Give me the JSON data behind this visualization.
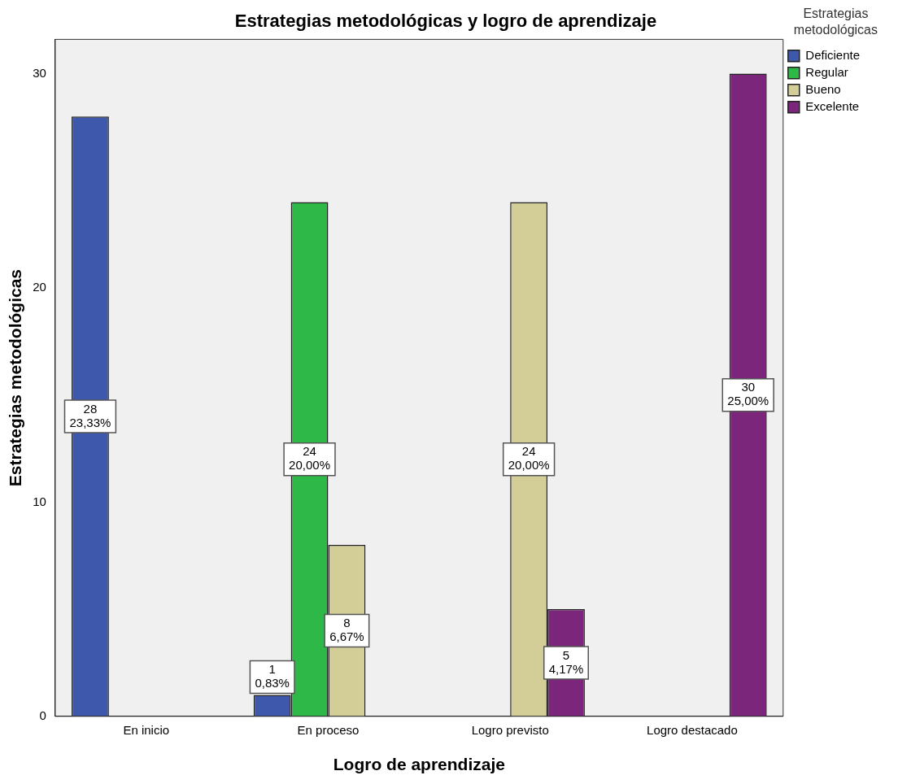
{
  "chart_data": {
    "type": "bar",
    "title": "Estrategias metodológicas y logro de aprendizaje",
    "xlabel": "Logro de aprendizaje",
    "ylabel": "Estrategias metodológicas",
    "legend_title": "Estrategias metodológicas",
    "categories": [
      "En inicio",
      "En proceso",
      "Logro previsto",
      "Logro destacado"
    ],
    "series": [
      {
        "name": "Deficiente",
        "color": "#3e58ac",
        "values": [
          28,
          1,
          null,
          null
        ],
        "value_labels": [
          "28\n23,33%",
          "1\n0,83%",
          null,
          null
        ]
      },
      {
        "name": "Regular",
        "color": "#2eb848",
        "values": [
          null,
          24,
          null,
          null
        ],
        "value_labels": [
          null,
          "24\n20,00%",
          null,
          null
        ]
      },
      {
        "name": "Bueno",
        "color": "#d3ce97",
        "values": [
          null,
          8,
          24,
          null
        ],
        "value_labels": [
          null,
          "8\n6,67%",
          "24\n20,00%",
          null
        ]
      },
      {
        "name": "Excelente",
        "color": "#7b267a",
        "values": [
          null,
          null,
          5,
          30
        ],
        "value_labels": [
          null,
          null,
          "5\n4,17%",
          "30\n25,00%"
        ]
      }
    ],
    "ylim": [
      0,
      31.6
    ],
    "yticks": [
      0,
      10,
      20,
      30
    ],
    "grid": false,
    "legend": "top right"
  }
}
